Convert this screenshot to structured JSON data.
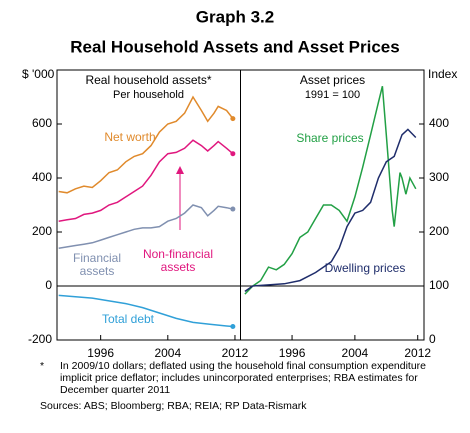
{
  "header": {
    "title": "Graph 3.2",
    "subtitle": "Real Household Assets and Asset Prices"
  },
  "chart_data": [
    {
      "type": "line",
      "title": "Real household assets*",
      "subtitle": "Per household",
      "ylabel": "$ '000",
      "y_axis_side": "left",
      "xlim": [
        1990.8,
        2012.6
      ],
      "xticks": [
        1996,
        2004,
        2012
      ],
      "ylim": [
        -200,
        800
      ],
      "yticks": [
        -200,
        0,
        200,
        400,
        600
      ],
      "zero_line": 0,
      "series": [
        {
          "name": "Net worth",
          "color": "#e08a2c",
          "x": [
            1991,
            1992,
            1993,
            1994,
            1995,
            1996,
            1997,
            1998,
            1999,
            2000,
            2001,
            2002,
            2003,
            2004,
            2005,
            2006,
            2007,
            2008,
            2008.75,
            2009.5,
            2010,
            2011,
            2011.75
          ],
          "values": [
            350,
            345,
            360,
            370,
            365,
            390,
            420,
            430,
            460,
            480,
            490,
            520,
            570,
            600,
            610,
            640,
            700,
            650,
            610,
            640,
            665,
            650,
            620
          ]
        },
        {
          "name": "Non-financial assets",
          "color": "#e0177e",
          "x": [
            1991,
            1992,
            1993,
            1994,
            1995,
            1996,
            1997,
            1998,
            1999,
            2000,
            2001,
            2002,
            2003,
            2004,
            2005,
            2006,
            2007,
            2008,
            2008.75,
            2009.5,
            2010,
            2011,
            2011.75
          ],
          "values": [
            240,
            245,
            250,
            265,
            270,
            280,
            300,
            310,
            330,
            350,
            370,
            410,
            460,
            490,
            495,
            510,
            540,
            520,
            500,
            520,
            535,
            510,
            490
          ]
        },
        {
          "name": "Financial assets",
          "color": "#8090b0",
          "x": [
            1991,
            1992,
            1993,
            1994,
            1995,
            1996,
            1997,
            1998,
            1999,
            2000,
            2001,
            2002,
            2003,
            2004,
            2005,
            2006,
            2007,
            2008,
            2008.75,
            2009.5,
            2010,
            2011,
            2011.75
          ],
          "values": [
            140,
            145,
            150,
            155,
            160,
            170,
            180,
            190,
            200,
            210,
            215,
            215,
            220,
            240,
            250,
            270,
            300,
            290,
            260,
            280,
            295,
            290,
            285
          ]
        },
        {
          "name": "Total debt",
          "color": "#30a0d8",
          "x": [
            1991,
            1993,
            1995,
            1997,
            1999,
            2001,
            2003,
            2005,
            2007,
            2009,
            2011,
            2011.75
          ],
          "values": [
            -35,
            -40,
            -45,
            -55,
            -65,
            -80,
            -100,
            -120,
            -135,
            -142,
            -148,
            -150
          ]
        }
      ]
    },
    {
      "type": "line",
      "title": "Asset prices",
      "subtitle": "1991 = 100",
      "ylabel": "Index",
      "y_axis_side": "right",
      "xlim": [
        1989.5,
        2012.8
      ],
      "xticks": [
        1996,
        2004,
        2012
      ],
      "ylim": [
        0,
        500
      ],
      "yticks": [
        0,
        100,
        200,
        300,
        400
      ],
      "zero_line": 100,
      "series": [
        {
          "name": "Share prices",
          "color": "#22a045",
          "x": [
            1990,
            1991,
            1992,
            1993,
            1994,
            1995,
            1996,
            1997,
            1998,
            1999,
            2000,
            2001,
            2002,
            2003,
            2004,
            2005,
            2006,
            2007,
            2007.5,
            2008,
            2008.75,
            2009,
            2009.75,
            2010,
            2010.5,
            2011,
            2011.75
          ],
          "values": [
            85,
            100,
            110,
            135,
            130,
            140,
            160,
            190,
            200,
            225,
            250,
            250,
            240,
            220,
            265,
            320,
            380,
            440,
            470,
            380,
            240,
            210,
            310,
            300,
            270,
            300,
            280
          ]
        },
        {
          "name": "Dwelling prices",
          "color": "#1f2d6b",
          "x": [
            1990,
            1991,
            1993,
            1995,
            1997,
            1999,
            2001,
            2002,
            2003,
            2004,
            2005,
            2006,
            2007,
            2008,
            2009,
            2010,
            2010.75,
            2011.75
          ],
          "values": [
            90,
            100,
            102,
            104,
            110,
            125,
            145,
            170,
            210,
            235,
            240,
            255,
            300,
            330,
            340,
            380,
            390,
            375
          ]
        }
      ]
    }
  ],
  "notes": [
    "*",
    "In 2009/10 dollars; deflated using the household final consumption expenditure implicit price deflator; includes unincorporated enterprises; RBA estimates for December quarter 2011"
  ],
  "sources": "Sources: ABS; Bloomberg; RBA; REIA; RP Data-Rismark"
}
